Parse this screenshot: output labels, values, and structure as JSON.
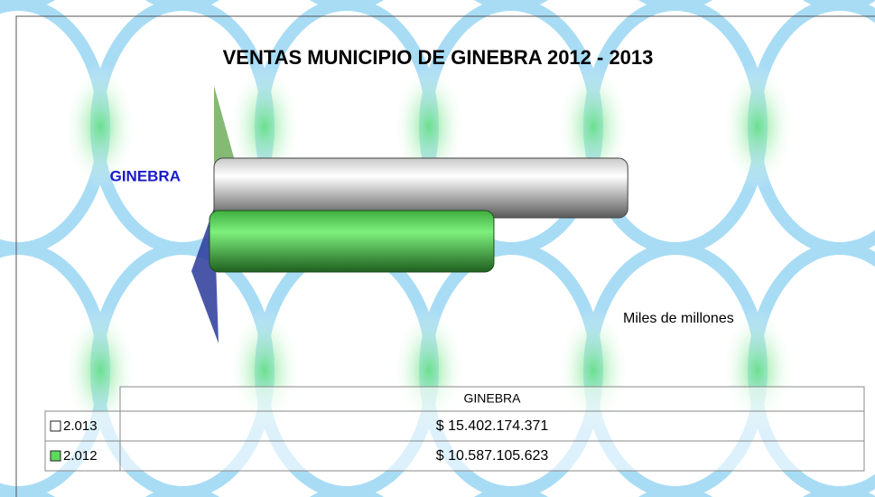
{
  "chart_data": {
    "type": "bar",
    "orientation": "horizontal",
    "title": "VENTAS MUNICIPIO DE GINEBRA  2012 - 2013",
    "x_label": "Miles de millones",
    "categories": [
      "GINEBRA"
    ],
    "series": [
      {
        "name": "2.013",
        "color": "#ffffff",
        "values": [
          15402174371
        ],
        "value_labels": [
          "$ 15.402.174.371"
        ]
      },
      {
        "name": "2.012",
        "color": "#5ddb5d",
        "values": [
          10587105623
        ],
        "value_labels": [
          "$ 10.587.105.623"
        ]
      }
    ],
    "xlim": [
      0,
      20000000000
    ]
  }
}
